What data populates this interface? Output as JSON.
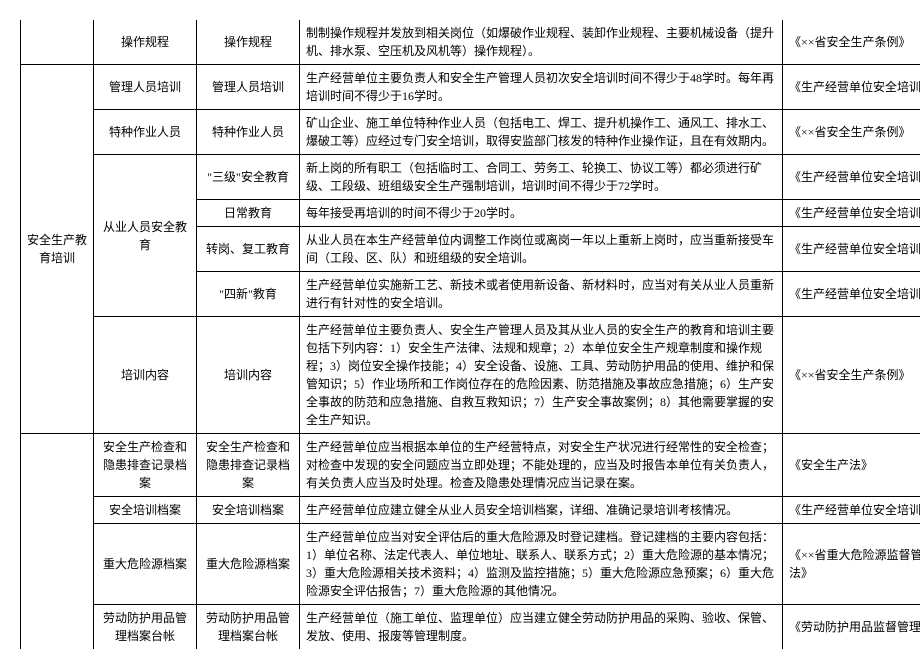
{
  "rows": [
    {
      "c1": {
        "text": "",
        "rowspan": 1,
        "cls": "no-top no-bot"
      },
      "c2": {
        "text": "操作规程",
        "rowspan": 1,
        "cls": "no-top"
      },
      "c3": {
        "text": "操作规程",
        "rowspan": 1,
        "cls": "no-top"
      },
      "c4": {
        "text": "制制操作规程并发放到相关岗位（如爆破作业规程、装卸作业规程、主要机械设备（提升机、排水泵、空压机及风机等）操作规程）。",
        "rowspan": 1,
        "cls": "no-top"
      },
      "c5": {
        "text": "《××省安全生产条例》",
        "rowspan": 1,
        "cls": "no-top"
      }
    },
    {
      "c1": {
        "text": "安全生产教育培训",
        "rowspan": 7
      },
      "c2": {
        "text": "管理人员培训",
        "rowspan": 1
      },
      "c3": {
        "text": "管理人员培训",
        "rowspan": 1
      },
      "c4": {
        "text": "生产经营单位主要负责人和安全生产管理人员初次安全培训时间不得少于48学时。每年再培训时间不得少于16学时。",
        "rowspan": 1
      },
      "c5": {
        "text": "《生产经营单位安全培训规定》",
        "rowspan": 1
      }
    },
    {
      "c2": {
        "text": "特种作业人员",
        "rowspan": 1
      },
      "c3": {
        "text": "特种作业人员",
        "rowspan": 1
      },
      "c4": {
        "text": "矿山企业、施工单位特种作业人员（包括电工、焊工、提升机操作工、通风工、排水工、爆破工等）应经过专门安全培训，取得安监部门核发的特种作业操作证，且在有效期内。",
        "rowspan": 1
      },
      "c5": {
        "text": "《××省安全生产条例》",
        "rowspan": 1
      }
    },
    {
      "c2": {
        "text": "从业人员安全教育",
        "rowspan": 4
      },
      "c3": {
        "text": "\"三级\"安全教育",
        "rowspan": 1
      },
      "c4": {
        "text": "新上岗的所有职工（包括临时工、合同工、劳务工、轮换工、协议工等）都必须进行矿级、工段级、班组级安全生产强制培训，培训时间不得少于72学时。",
        "rowspan": 1
      },
      "c5": {
        "text": "《生产经营单位安全培训规定》",
        "rowspan": 1
      }
    },
    {
      "c3": {
        "text": "日常教育",
        "rowspan": 1
      },
      "c4": {
        "text": "每年接受再培训的时间不得少于20学时。",
        "rowspan": 1
      },
      "c5": {
        "text": "《生产经营单位安全培训规定》",
        "rowspan": 1
      }
    },
    {
      "c3": {
        "text": "转岗、复工教育",
        "rowspan": 1
      },
      "c4": {
        "text": "从业人员在本生产经营单位内调整工作岗位或离岗一年以上重新上岗时，应当重新接受车间（工段、区、队）和班组级的安全培训。",
        "rowspan": 1
      },
      "c5": {
        "text": "《生产经营单位安全培训规定》",
        "rowspan": 1
      }
    },
    {
      "c3": {
        "text": "\"四新\"教育",
        "rowspan": 1
      },
      "c4": {
        "text": "生产经营单位实施新工艺、新技术或者使用新设备、新材料时，应当对有关从业人员重新进行有针对性的安全培训。",
        "rowspan": 1
      },
      "c5": {
        "text": "《生产经营单位安全培训规定》",
        "rowspan": 1
      }
    },
    {
      "c2": {
        "text": "培训内容",
        "rowspan": 1
      },
      "c3": {
        "text": "培训内容",
        "rowspan": 1
      },
      "c4": {
        "text": "生产经营单位主要负责人、安全生产管理人员及其从业人员的安全生产的教育和培训主要包括下列内容：1）安全生产法律、法规和规章；2）本单位安全生产规章制度和操作规程；3）岗位安全操作技能；4）安全设备、设施、工具、劳动防护用品的使用、维护和保管知识；5）作业场所和工作岗位存在的危险因素、防范措施及事故应急措施；6）生产安全事故的防范和应急措施、自救互救知识；7）生产安全事故案例；8）其他需要掌握的安全生产知识。",
        "rowspan": 1
      },
      "c5": {
        "text": "《××省安全生产条例》",
        "rowspan": 1
      }
    },
    {
      "c1": {
        "text": "",
        "rowspan": 4,
        "cls": "no-bot"
      },
      "c2": {
        "text": "安全生产检查和隐患排查记录档案",
        "rowspan": 1
      },
      "c3": {
        "text": "安全生产检查和隐患排查记录档案",
        "rowspan": 1
      },
      "c4": {
        "text": "生产经营单位应当根据本单位的生产经营特点，对安全生产状况进行经常性的安全检查；对检查中发现的安全问题应当立即处理；不能处理的，应当及时报告本单位有关负责人，有关负责人应当及时处理。检查及隐患处理情况应当记录在案。",
        "rowspan": 1
      },
      "c5": {
        "text": "《安全生产法》",
        "rowspan": 1
      }
    },
    {
      "c2": {
        "text": "安全培训档案",
        "rowspan": 1
      },
      "c3": {
        "text": "安全培训档案",
        "rowspan": 1
      },
      "c4": {
        "text": "生产经营单位应建立健全从业人员安全培训档案，详细、准确记录培训考核情况。",
        "rowspan": 1
      },
      "c5": {
        "text": "《生产经营单位安全培训规定》",
        "rowspan": 1
      }
    },
    {
      "c2": {
        "text": "重大危险源档案",
        "rowspan": 1
      },
      "c3": {
        "text": "重大危险源档案",
        "rowspan": 1
      },
      "c4": {
        "text": "生产经营单位应当对安全评估后的重大危险源及时登记建档。登记建档的主要内容包括：1）单位名称、法定代表人、单位地址、联系人、联系方式；2）重大危险源的基本情况；3）重大危险源相关技术资料；4）监测及监控措施；5）重大危险源应急预案；6）重大危险源安全评估报告；7）重大危险源的其他情况。",
        "rowspan": 1
      },
      "c5": {
        "text": "《××省重大危险源监督管理办法》",
        "rowspan": 1
      }
    },
    {
      "c2": {
        "text": "劳动防护用品管理档案台帐",
        "rowspan": 1,
        "cls": "no-bot"
      },
      "c3": {
        "text": "劳动防护用品管理档案台帐",
        "rowspan": 1,
        "cls": "no-bot"
      },
      "c4": {
        "text": "生产经营单位（施工单位、监理单位）应当建立健全劳动防护用品的采购、验收、保管、发放、使用、报废等管理制度。",
        "rowspan": 1,
        "cls": "no-bot"
      },
      "c5": {
        "text": "《劳动防护用品监督管理规定》",
        "rowspan": 1,
        "cls": "no-bot"
      }
    }
  ]
}
